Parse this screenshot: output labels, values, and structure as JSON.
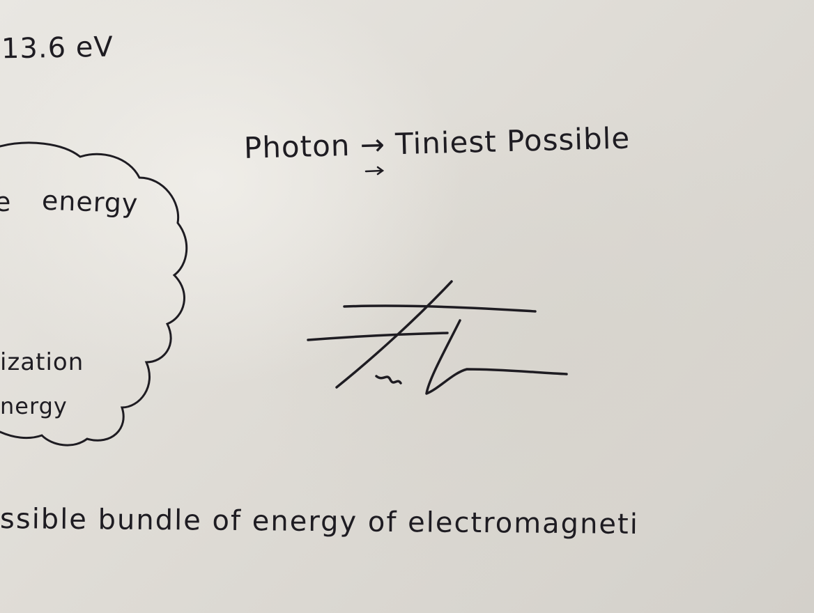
{
  "notes": {
    "ev_label": "13.6 eV",
    "photon_line": "Photon → Tiniest Possible",
    "cloud": {
      "prefix": "e",
      "energy": "energy",
      "ization": "ization",
      "nergy": "nergy"
    },
    "bottom_line": "ssible bundle of energy of electromagneti"
  },
  "colors": {
    "ink": "#1e1c22",
    "paper": "#e4e1dc"
  }
}
